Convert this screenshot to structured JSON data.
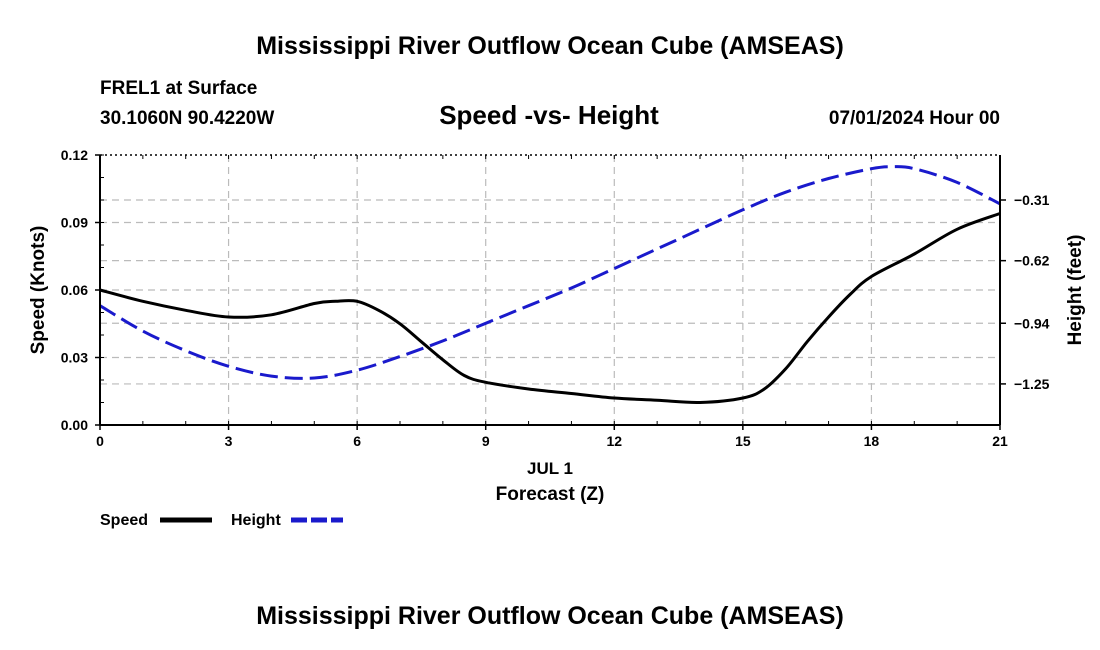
{
  "chart_data": {
    "type": "line",
    "title": "Mississippi River Outflow Ocean Cube (AMSEAS)",
    "station": "FREL1 at Surface",
    "location": "30.1060N  90.4220W",
    "subtitle": "Speed -vs- Height",
    "datetime": "07/01/2024 Hour 00",
    "footer_title": "Mississippi River Outflow Ocean Cube (AMSEAS)",
    "xlabel_date": "JUL 1",
    "xlabel": "Forecast (Z)",
    "ylabel_left": "Speed (Knots)",
    "ylabel_right": "Height (feet)",
    "xlim": [
      0,
      21
    ],
    "ylim_left": [
      0,
      0.12
    ],
    "ylim_right": [
      -1.46,
      -0.08
    ],
    "x_ticks": [
      "0",
      "3",
      "6",
      "9",
      "12",
      "15",
      "18",
      "21"
    ],
    "y_ticks_left": [
      "0.00",
      "0.03",
      "0.06",
      "0.09",
      "0.12"
    ],
    "y_ticks_right": [
      "-1.25",
      "-0.94",
      "-0.62",
      "-0.31"
    ],
    "y_ticks_right_values": [
      -1.25,
      -0.94,
      -0.62,
      -0.31
    ],
    "series": [
      {
        "name": "Speed",
        "axis": "left",
        "color": "#000000",
        "style": "solid",
        "x": [
          0,
          1,
          2,
          3,
          4,
          5,
          5.5,
          6,
          6.5,
          7,
          7.5,
          8,
          8.5,
          9,
          10,
          11,
          12,
          13,
          14,
          15,
          15.5,
          16,
          16.5,
          17,
          17.5,
          18,
          19,
          20,
          21
        ],
        "values": [
          0.06,
          0.055,
          0.051,
          0.048,
          0.049,
          0.054,
          0.055,
          0.055,
          0.051,
          0.045,
          0.037,
          0.029,
          0.022,
          0.019,
          0.016,
          0.014,
          0.012,
          0.011,
          0.01,
          0.012,
          0.016,
          0.025,
          0.037,
          0.048,
          0.058,
          0.066,
          0.076,
          0.087,
          0.094
        ]
      },
      {
        "name": "Height",
        "axis": "right",
        "color": "#1a1acc",
        "style": "dashed",
        "x": [
          0,
          1,
          2,
          3,
          4,
          5,
          6,
          7,
          8,
          9,
          10,
          11,
          12,
          13,
          14,
          15,
          16,
          17,
          18,
          18.5,
          19,
          20,
          21
        ],
        "values": [
          -0.85,
          -0.98,
          -1.08,
          -1.16,
          -1.21,
          -1.22,
          -1.18,
          -1.11,
          -1.03,
          -0.94,
          -0.85,
          -0.76,
          -0.66,
          -0.56,
          -0.46,
          -0.36,
          -0.27,
          -0.2,
          -0.15,
          -0.14,
          -0.15,
          -0.22,
          -0.33
        ]
      }
    ],
    "legend": [
      {
        "label": "Speed",
        "color": "#000000",
        "style": "solid"
      },
      {
        "label": "Height",
        "color": "#1a1acc",
        "style": "dashed"
      }
    ]
  }
}
